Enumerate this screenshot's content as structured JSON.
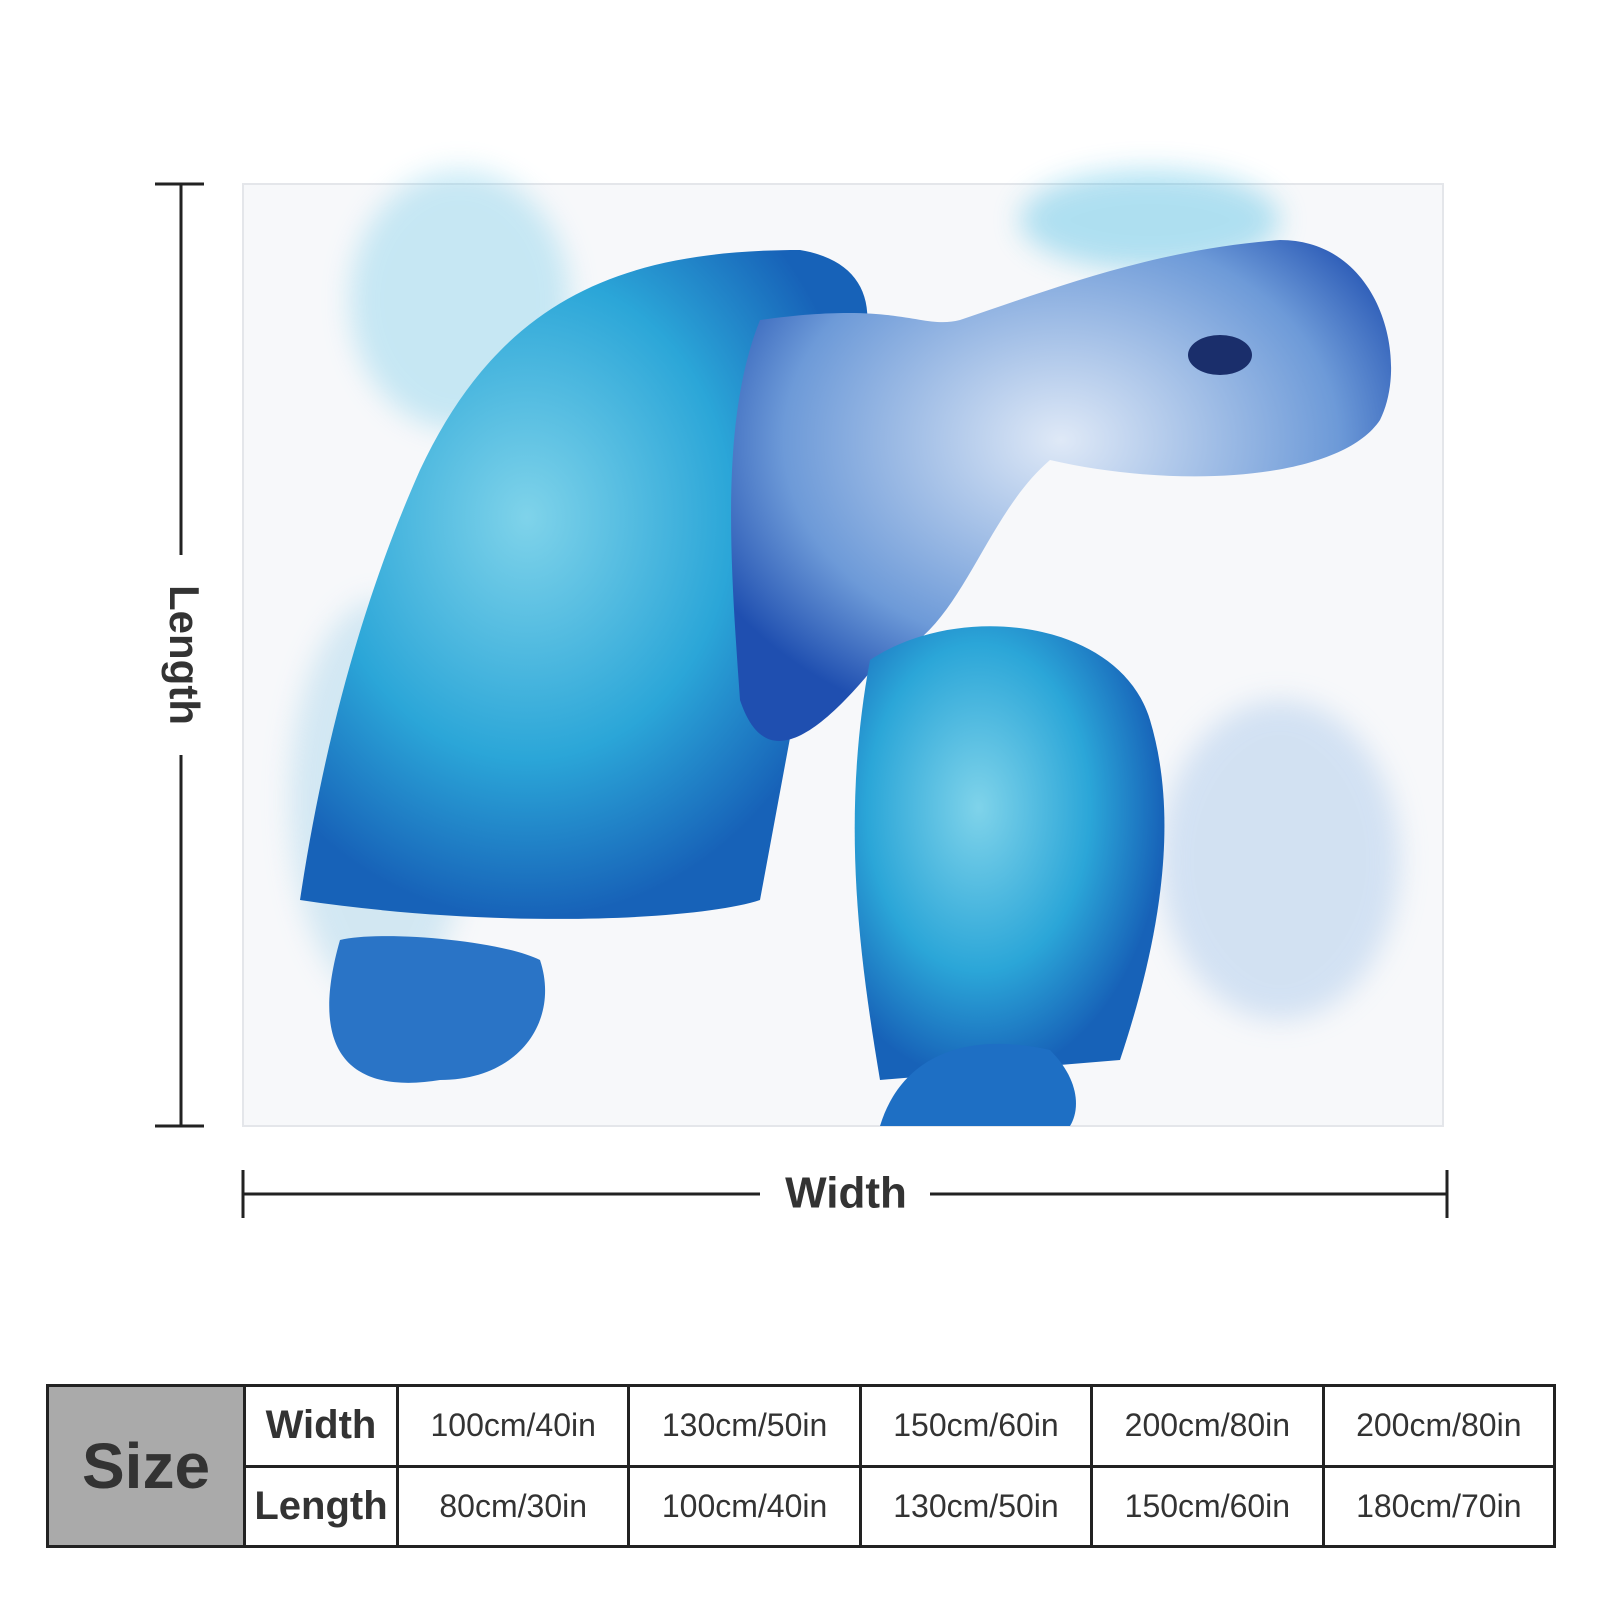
{
  "dimensions": {
    "length": "Length",
    "width": "Width"
  },
  "size_table": {
    "corner": "Size",
    "row_labels": [
      "Width",
      "Length"
    ],
    "rows": [
      [
        "100cm/40in",
        "130cm/50in",
        "150cm/60in",
        "200cm/80in",
        "200cm/80in"
      ],
      [
        "80cm/30in",
        "100cm/40in",
        "130cm/50in",
        "150cm/60in",
        "180cm/70in"
      ]
    ]
  }
}
